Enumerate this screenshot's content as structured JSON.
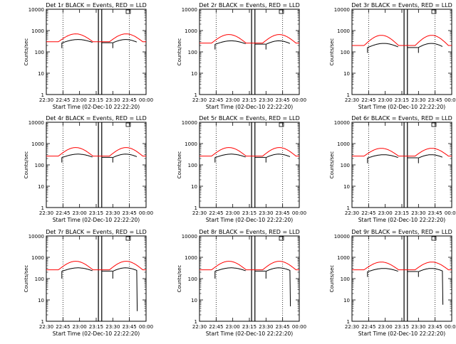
{
  "chart_data": {
    "type": "line",
    "grid_layout": "3x3",
    "yscale": "log",
    "ylim": [
      1,
      10000
    ],
    "xlim_hours": [
      22.5,
      24.0
    ],
    "ylabel": "Counts/sec",
    "xlabel": "Start Time (02-Dec-10 22:22:20)",
    "x_tick_labels": [
      "22:30",
      "22:45",
      "23:00",
      "23:15",
      "23:30",
      "23:45",
      "00:00"
    ],
    "y_tick_labels": [
      "1",
      "10",
      "100",
      "1000",
      "10000"
    ],
    "line_colors": {
      "events": "#000000",
      "lld": "#ff0000"
    },
    "panels": [
      {
        "title": "Det 1r BLACK = Events, RED = LLD",
        "lld_base": 300,
        "lld_peak": 700,
        "evt_base": 270,
        "evt_peak": 380,
        "evt_min": 150,
        "drop_to": null
      },
      {
        "title": "Det 2r BLACK = Events, RED = LLD",
        "lld_base": 260,
        "lld_peak": 650,
        "evt_base": 230,
        "evt_peak": 330,
        "evt_min": 130,
        "drop_to": null
      },
      {
        "title": "Det 3r BLACK = Events, RED = LLD",
        "lld_base": 200,
        "lld_peak": 600,
        "evt_base": 160,
        "evt_peak": 250,
        "evt_min": 90,
        "drop_to": null
      },
      {
        "title": "Det 4r BLACK = Events, RED = LLD",
        "lld_base": 260,
        "lld_peak": 650,
        "evt_base": 225,
        "evt_peak": 320,
        "evt_min": 130,
        "drop_to": null
      },
      {
        "title": "Det 5r BLACK = Events, RED = LLD",
        "lld_base": 260,
        "lld_peak": 650,
        "evt_base": 225,
        "evt_peak": 320,
        "evt_min": 130,
        "drop_to": null
      },
      {
        "title": "Det 6r BLACK = Events, RED = LLD",
        "lld_base": 260,
        "lld_peak": 600,
        "evt_base": 215,
        "evt_peak": 300,
        "evt_min": 120,
        "drop_to": null
      },
      {
        "title": "Det 7r BLACK = Events, RED = LLD",
        "lld_base": 260,
        "lld_peak": 650,
        "evt_base": 225,
        "evt_peak": 320,
        "evt_min": 100,
        "drop_to": 3
      },
      {
        "title": "Det 8r BLACK = Events, RED = LLD",
        "lld_base": 260,
        "lld_peak": 650,
        "evt_base": 225,
        "evt_peak": 320,
        "evt_min": 100,
        "drop_to": 5
      },
      {
        "title": "Det 9r BLACK = Events, RED = LLD",
        "lld_base": 260,
        "lld_peak": 600,
        "evt_base": 215,
        "evt_peak": 300,
        "evt_min": 120,
        "drop_to": 6
      }
    ]
  }
}
